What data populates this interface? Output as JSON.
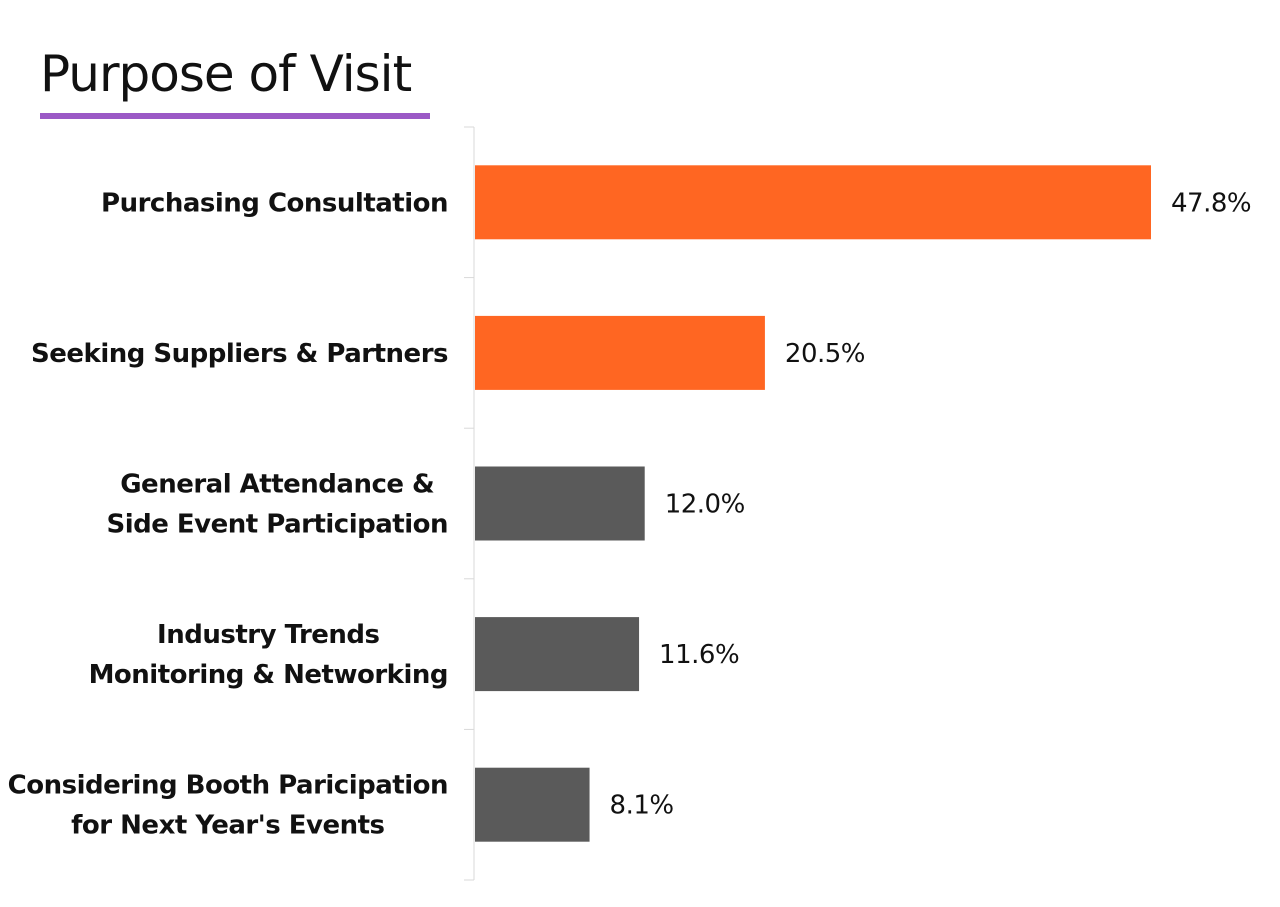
{
  "chart_data": {
    "type": "bar",
    "orientation": "horizontal",
    "title": "Purpose of Visit",
    "categories": [
      [
        "Purchasing Consultation"
      ],
      [
        "Seeking Suppliers & Partners"
      ],
      [
        "General Attendance &",
        "Side Event Participation"
      ],
      [
        "Industry Trends",
        "Monitoring & Networking"
      ],
      [
        "Considering Booth Paricipation",
        "for Next Year's Events"
      ]
    ],
    "values": [
      47.8,
      20.5,
      12.0,
      11.6,
      8.1
    ],
    "value_labels": [
      "47.8%",
      "20.5%",
      "12.0%",
      "11.6%",
      "8.1%"
    ],
    "bar_colors": [
      "#ff6622",
      "#ff6622",
      "#5a5a5a",
      "#5a5a5a",
      "#5a5a5a"
    ],
    "xlim": [
      0,
      47.8
    ],
    "grid": false,
    "legend": "none"
  },
  "colors": {
    "highlight": "#ff6622",
    "neutral": "#5a5a5a",
    "title_underline": "#9b59c6"
  }
}
